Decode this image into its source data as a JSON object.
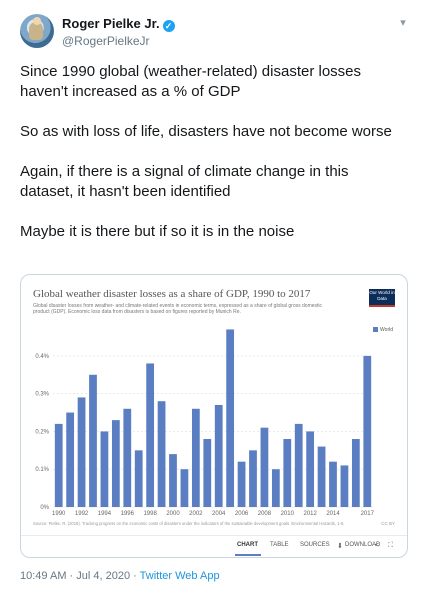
{
  "author": {
    "name": "Roger Pielke Jr.",
    "handle": "@RogerPielkeJr",
    "verified_glyph": "✓"
  },
  "menu_glyph": "▾",
  "tweet": {
    "paragraphs": [
      "Since 1990 global (weather-related) disaster losses haven't increased as a % of GDP",
      "So as with loss of life, disasters have not become worse",
      "Again, if there is a signal of climate change in this dataset, it hasn't been identified",
      "Maybe it is there but if so it is in the noise"
    ]
  },
  "card": {
    "title": "Global weather disaster losses as a share of GDP, 1990 to 2017",
    "subtitle": "Global disaster losses from weather- and climate-related events in economic terms, expressed as a share of global gross domestic product (GDP). Economic loss data from disasters is based on figures reported by Munich Re.",
    "logo": "Our World in Data",
    "legend": "World",
    "source": "Source: Pielke, R. (2018). Tracking progress on the economic costs of disasters under the indicators of the sustainable development goals. Environmental Hazards, 1-6.",
    "license": "CC BY",
    "tabs": [
      "CHART",
      "TABLE",
      "SOURCES",
      "DOWNLOAD"
    ],
    "tab_icons": {
      "download": "⬇",
      "share": "<",
      "expand": "⛶"
    }
  },
  "chart_data": {
    "type": "bar",
    "title": "Global weather disaster losses as a share of GDP, 1990 to 2017",
    "ylim": [
      0,
      0.45
    ],
    "yticks": [
      "0%",
      "0.1%",
      "0.2%",
      "0.3%",
      "0.4%"
    ],
    "ytick_values": [
      0,
      0.1,
      0.2,
      0.3,
      0.4
    ],
    "xtick_labels": [
      "1990",
      "1992",
      "1994",
      "1996",
      "1998",
      "2000",
      "2002",
      "2004",
      "2006",
      "2008",
      "2010",
      "2012",
      "2014",
      "2017"
    ],
    "categories": [
      "1990",
      "1991",
      "1992",
      "1993",
      "1994",
      "1995",
      "1996",
      "1997",
      "1998",
      "1999",
      "2000",
      "2001",
      "2002",
      "2003",
      "2004",
      "2005",
      "2006",
      "2007",
      "2008",
      "2009",
      "2010",
      "2011",
      "2012",
      "2013",
      "2014",
      "2015",
      "2016",
      "2017"
    ],
    "series": [
      {
        "name": "World",
        "color": "#5b7ec2",
        "values": [
          0.22,
          0.25,
          0.29,
          0.35,
          0.2,
          0.23,
          0.26,
          0.15,
          0.38,
          0.28,
          0.14,
          0.1,
          0.26,
          0.18,
          0.27,
          0.47,
          0.12,
          0.15,
          0.21,
          0.1,
          0.18,
          0.22,
          0.2,
          0.16,
          0.12,
          0.11,
          0.18,
          0.4
        ]
      }
    ],
    "grid": true,
    "legend_position": "top-right"
  },
  "footer": {
    "time": "10:49 AM",
    "sep": " · ",
    "date": "Jul 4, 2020",
    "app": "Twitter Web App"
  }
}
